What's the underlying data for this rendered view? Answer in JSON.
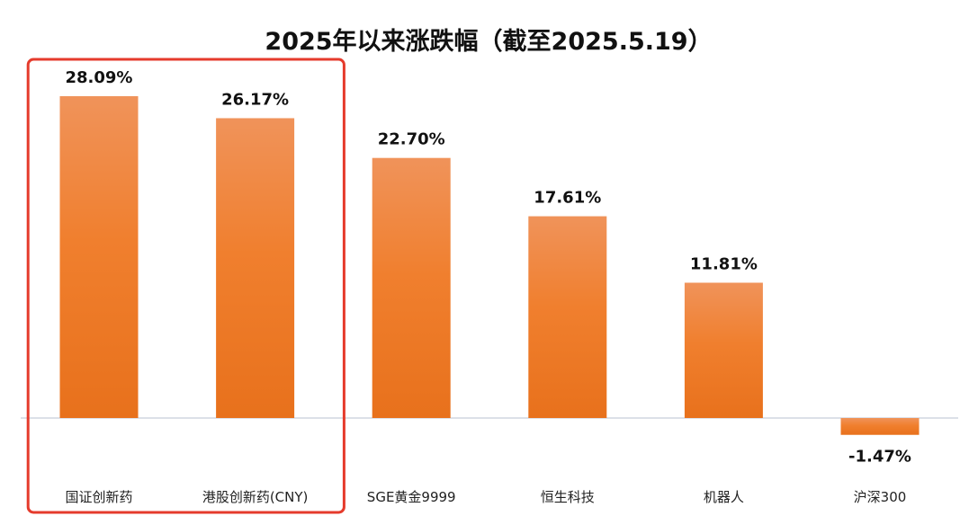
{
  "chart_data": {
    "type": "bar",
    "title": "2025年以来涨跌幅（截至2025.5.19）",
    "categories": [
      "国证创新药",
      "港股创新药(CNY)",
      "SGE黄金9999",
      "恒生科技",
      "机器人",
      "沪深300"
    ],
    "values": [
      28.09,
      26.17,
      22.7,
      17.61,
      11.81,
      -1.47
    ],
    "value_labels": [
      "28.09%",
      "26.17%",
      "22.70%",
      "17.61%",
      "11.81%",
      "-1.47%"
    ],
    "unit": "%",
    "ylim": [
      -3,
      31
    ],
    "grid": false,
    "legend": "none",
    "highlight_categories": [
      "国证创新药",
      "港股创新药(CNY)"
    ],
    "colors": {
      "bar_top": "#F0935A",
      "bar_bottom": "#E8711C",
      "highlight_box": "#E53B2C",
      "baseline": "#D0D5E0"
    }
  }
}
